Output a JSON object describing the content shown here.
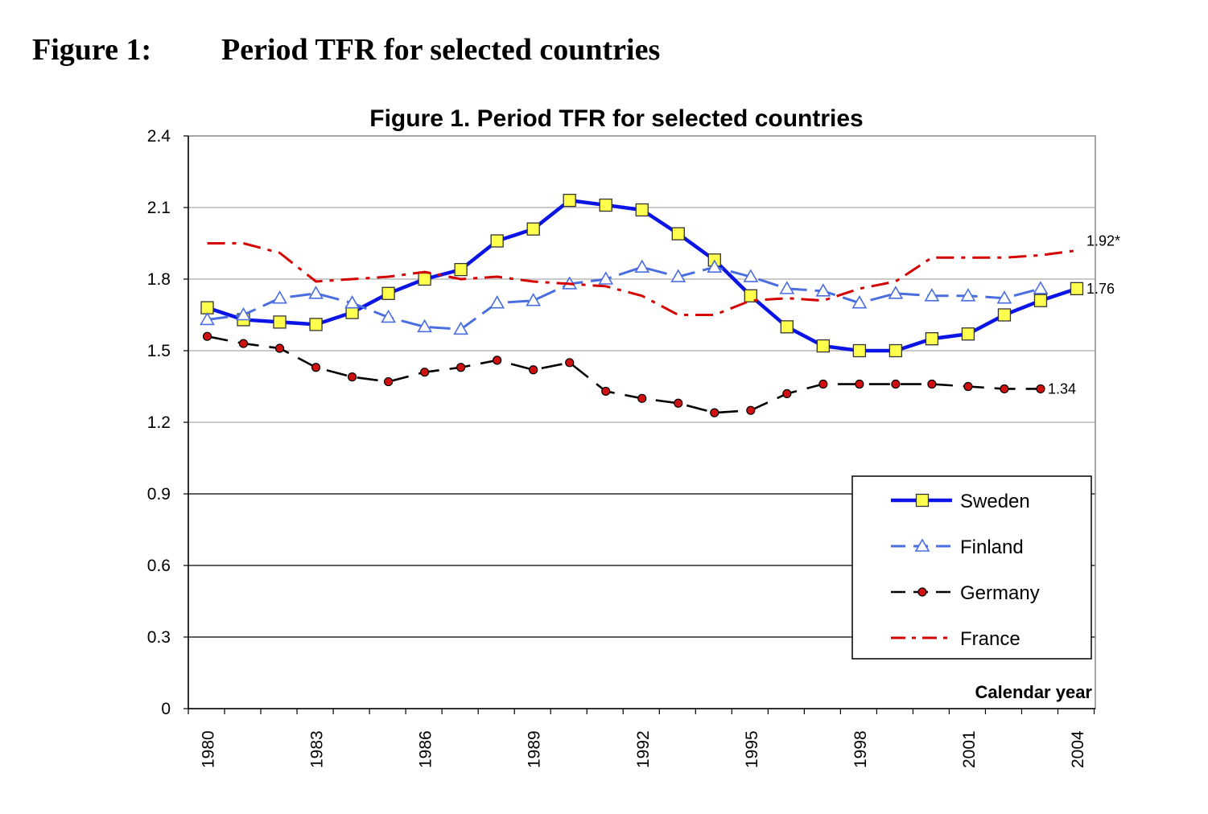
{
  "caption": {
    "number": "Figure 1:",
    "text": "Period TFR for selected countries"
  },
  "chart_data": {
    "type": "line",
    "title": "Figure 1. Period TFR for selected countries",
    "xlabel": "Calendar year",
    "ylabel": "",
    "ylim": [
      0,
      2.4
    ],
    "xlim": [
      1980,
      2004
    ],
    "y_ticks": [
      "0",
      "0.3",
      "0.6",
      "0.9",
      "1.2",
      "1.5",
      "1.8",
      "2.1",
      "2.4"
    ],
    "x_tick_labels": [
      "1980",
      "1983",
      "1986",
      "1989",
      "1992",
      "1995",
      "1998",
      "2001",
      "2004"
    ],
    "grid": true,
    "legend_position": "bottom-right",
    "series": [
      {
        "name": "Sweden",
        "color": "#0a14e6",
        "marker": "square",
        "line": "solid",
        "x": [
          1980,
          1981,
          1982,
          1983,
          1984,
          1985,
          1986,
          1987,
          1988,
          1989,
          1990,
          1991,
          1992,
          1993,
          1994,
          1995,
          1996,
          1997,
          1998,
          1999,
          2000,
          2001,
          2002,
          2003,
          2004
        ],
        "values": [
          1.68,
          1.63,
          1.62,
          1.61,
          1.66,
          1.74,
          1.8,
          1.84,
          1.96,
          2.01,
          2.13,
          2.11,
          2.09,
          1.99,
          1.88,
          1.73,
          1.6,
          1.52,
          1.5,
          1.5,
          1.55,
          1.57,
          1.65,
          1.71,
          1.76
        ],
        "end_label": "1.76"
      },
      {
        "name": "Finland",
        "color": "#4a6ee0",
        "marker": "triangle",
        "line": "dashed",
        "x": [
          1980,
          1981,
          1982,
          1983,
          1984,
          1985,
          1986,
          1987,
          1988,
          1989,
          1990,
          1991,
          1992,
          1993,
          1994,
          1995,
          1996,
          1997,
          1998,
          1999,
          2000,
          2001,
          2002,
          2003
        ],
        "values": [
          1.63,
          1.65,
          1.72,
          1.74,
          1.7,
          1.64,
          1.6,
          1.59,
          1.7,
          1.71,
          1.78,
          1.8,
          1.85,
          1.81,
          1.85,
          1.81,
          1.76,
          1.75,
          1.7,
          1.74,
          1.73,
          1.73,
          1.72,
          1.76
        ]
      },
      {
        "name": "Germany",
        "color": "#000000",
        "marker": "circle",
        "marker_fill": "#d01010",
        "line": "longdash",
        "x": [
          1980,
          1981,
          1982,
          1983,
          1984,
          1985,
          1986,
          1987,
          1988,
          1989,
          1990,
          1991,
          1992,
          1993,
          1994,
          1995,
          1996,
          1997,
          1998,
          1999,
          2000,
          2001,
          2002,
          2003
        ],
        "values": [
          1.56,
          1.53,
          1.51,
          1.43,
          1.39,
          1.37,
          1.41,
          1.43,
          1.46,
          1.42,
          1.45,
          1.33,
          1.3,
          1.28,
          1.24,
          1.25,
          1.32,
          1.36,
          1.36,
          1.36,
          1.36,
          1.35,
          1.34,
          1.34
        ],
        "end_label": "1.34"
      },
      {
        "name": "France",
        "color": "#d40000",
        "marker": "none",
        "line": "dashdot",
        "x": [
          1980,
          1981,
          1982,
          1983,
          1984,
          1985,
          1986,
          1987,
          1988,
          1989,
          1990,
          1991,
          1992,
          1993,
          1994,
          1995,
          1996,
          1997,
          1998,
          1999,
          2000,
          2001,
          2002,
          2003,
          2004
        ],
        "values": [
          1.95,
          1.95,
          1.91,
          1.79,
          1.8,
          1.81,
          1.83,
          1.8,
          1.81,
          1.79,
          1.78,
          1.77,
          1.73,
          1.65,
          1.65,
          1.71,
          1.72,
          1.71,
          1.76,
          1.79,
          1.89,
          1.89,
          1.89,
          1.9,
          1.92
        ],
        "end_label": "1.92*"
      }
    ]
  }
}
